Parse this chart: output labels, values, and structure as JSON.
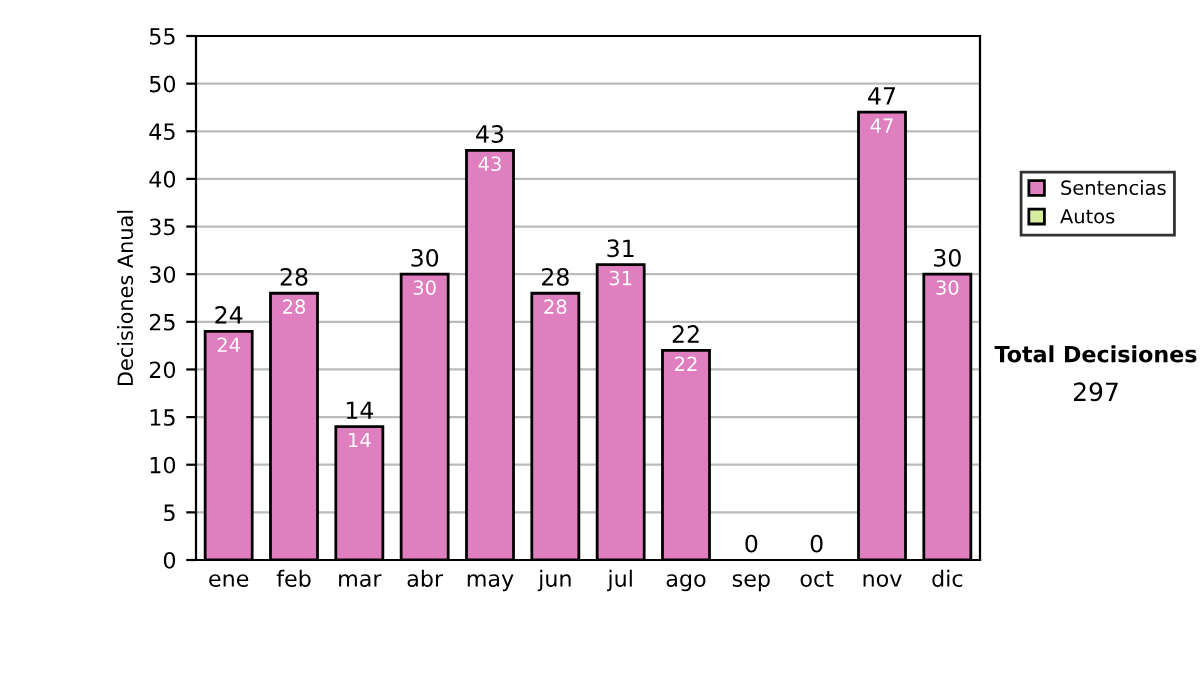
{
  "chart_data": {
    "type": "bar",
    "stacked": true,
    "ylabel": "Decisiones Anual",
    "categories": [
      "ene",
      "feb",
      "mar",
      "abr",
      "may",
      "jun",
      "jul",
      "ago",
      "sep",
      "oct",
      "nov",
      "dic"
    ],
    "series": [
      {
        "name": "Sentencias",
        "color": "#e07fc0",
        "values": [
          24,
          28,
          14,
          30,
          43,
          28,
          31,
          22,
          0,
          0,
          47,
          30
        ],
        "value_labels": [
          "24",
          "28",
          "14",
          "30",
          "43",
          "28",
          "31",
          "22",
          null,
          null,
          "47",
          "30"
        ]
      },
      {
        "name": "Autos",
        "color": "#d8eca0",
        "values": [
          0,
          0,
          0,
          0,
          0,
          0,
          0,
          0,
          0,
          0,
          0,
          0
        ]
      }
    ],
    "totals": [
      "24",
      "28",
      "14",
      "30",
      "43",
      "28",
      "31",
      "22",
      "0",
      "0",
      "47",
      "30"
    ],
    "ylim": [
      0,
      55
    ],
    "yticks": [
      0,
      5,
      10,
      15,
      20,
      25,
      30,
      35,
      40,
      45,
      50,
      55
    ],
    "grid": "y",
    "legend": "right",
    "annotations": [
      "Total Decisiones",
      "297"
    ]
  }
}
